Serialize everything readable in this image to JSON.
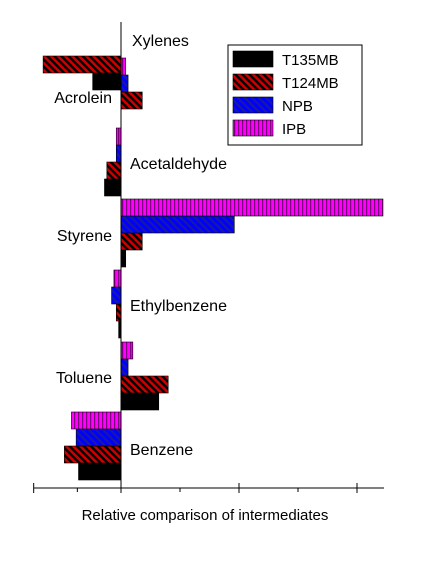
{
  "chart_data": {
    "type": "bar",
    "orientation": "horizontal",
    "xlabel": "Relative comparison of intermediates",
    "ylabel": "",
    "xlim": [
      -0.37,
      1.1
    ],
    "grid": false,
    "legend_position": "top-right",
    "categories": [
      "Benzene",
      "Toluene",
      "Ethylbenzene",
      "Styrene",
      "Acetaldehyde",
      "Acrolein",
      "Xylenes"
    ],
    "series": [
      {
        "name": "T135MB",
        "color": "#000000",
        "pattern": "solid",
        "values": [
          -0.18,
          0.16,
          -0.01,
          0.02,
          -0.07,
          0.0,
          -0.12
        ]
      },
      {
        "name": "T124MB",
        "color": "#cc0000",
        "pattern": "diagonal-hatch",
        "values": [
          -0.24,
          0.2,
          -0.02,
          0.09,
          -0.06,
          0.09,
          -0.33
        ]
      },
      {
        "name": "NPB",
        "color": "#0000ff",
        "pattern": "diagonal-hatch",
        "values": [
          -0.19,
          0.03,
          -0.04,
          0.48,
          -0.02,
          0.03,
          0.0
        ]
      },
      {
        "name": "IPB",
        "color": "#ff00ff",
        "pattern": "vertical-hatch",
        "values": [
          -0.21,
          0.05,
          -0.03,
          1.11,
          -0.02,
          0.02,
          0.0
        ]
      }
    ]
  }
}
